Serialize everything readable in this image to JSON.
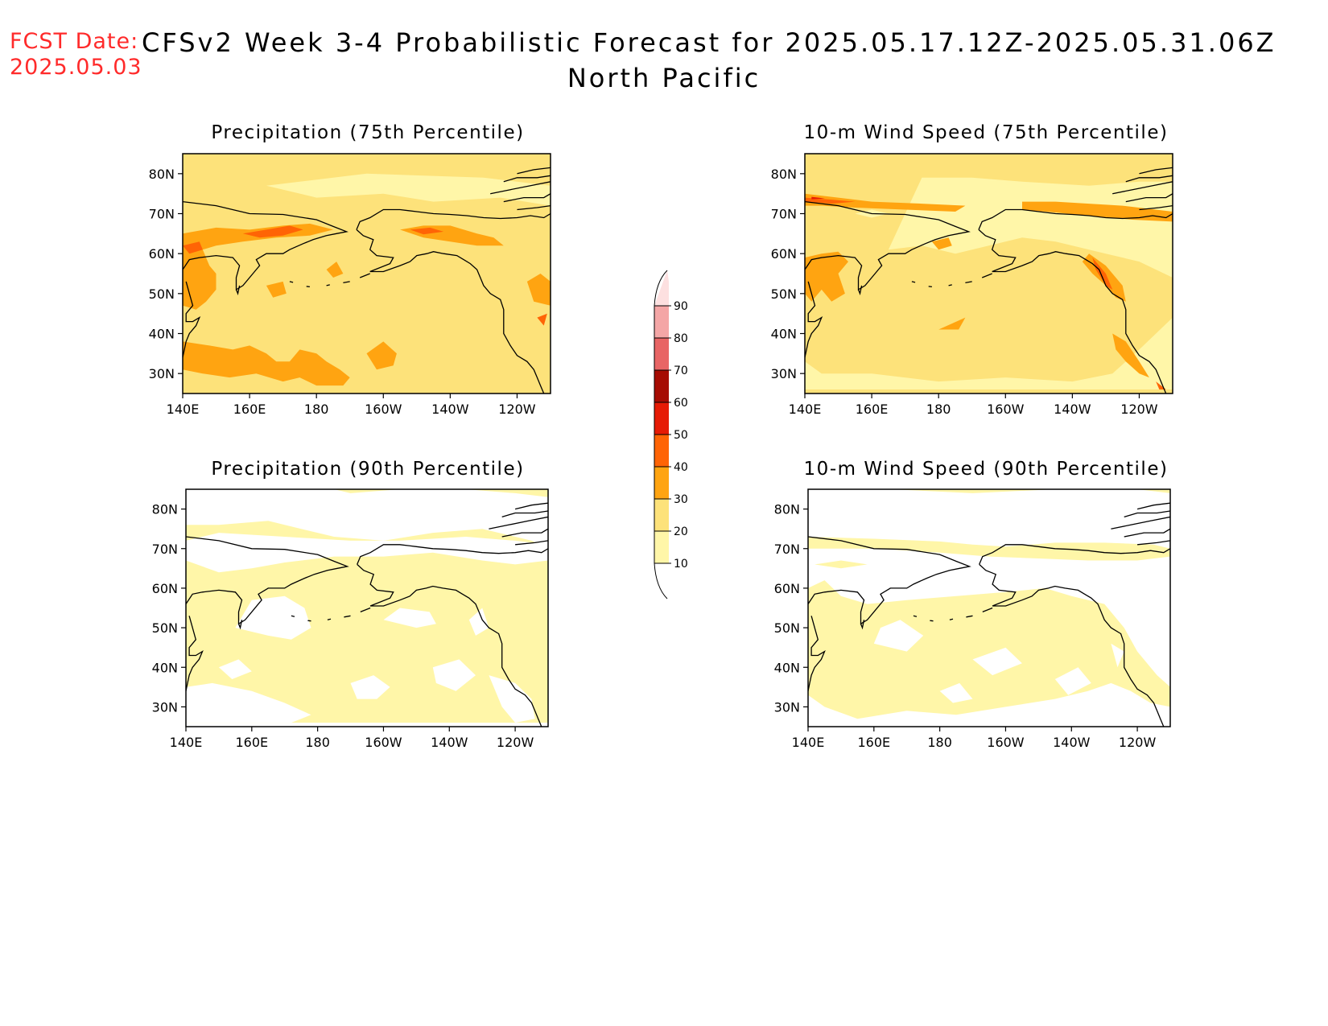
{
  "header": {
    "fcst_label": "FCST Date:",
    "fcst_date": "2025.05.03",
    "title": "CFSv2 Week 3-4 Probabilistic Forecast for 2025.05.17.12Z-2025.05.31.06Z",
    "region": "North Pacific"
  },
  "axes": {
    "lon_ticks": [
      "140E",
      "160E",
      "180",
      "160W",
      "140W",
      "120W"
    ],
    "lat_ticks": [
      "80N",
      "70N",
      "60N",
      "50N",
      "40N",
      "30N"
    ]
  },
  "panels": [
    {
      "id": "precip-75",
      "title": "Precipitation (75th Percentile)"
    },
    {
      "id": "wind-75",
      "title": "10-m Wind Speed (75th Percentile)"
    },
    {
      "id": "precip-90",
      "title": "Precipitation (90th Percentile)"
    },
    {
      "id": "wind-90",
      "title": "10-m Wind Speed (90th Percentile)"
    }
  ],
  "colorbar": {
    "levels": [
      "10",
      "20",
      "30",
      "40",
      "50",
      "60",
      "70",
      "80",
      "90"
    ],
    "colors": [
      "#fff6a8",
      "#fde27a",
      "#ffa411",
      "#ff6405",
      "#e61b05",
      "#a60c03",
      "#e86565",
      "#f4a6a6",
      "#fde0e0"
    ]
  }
}
